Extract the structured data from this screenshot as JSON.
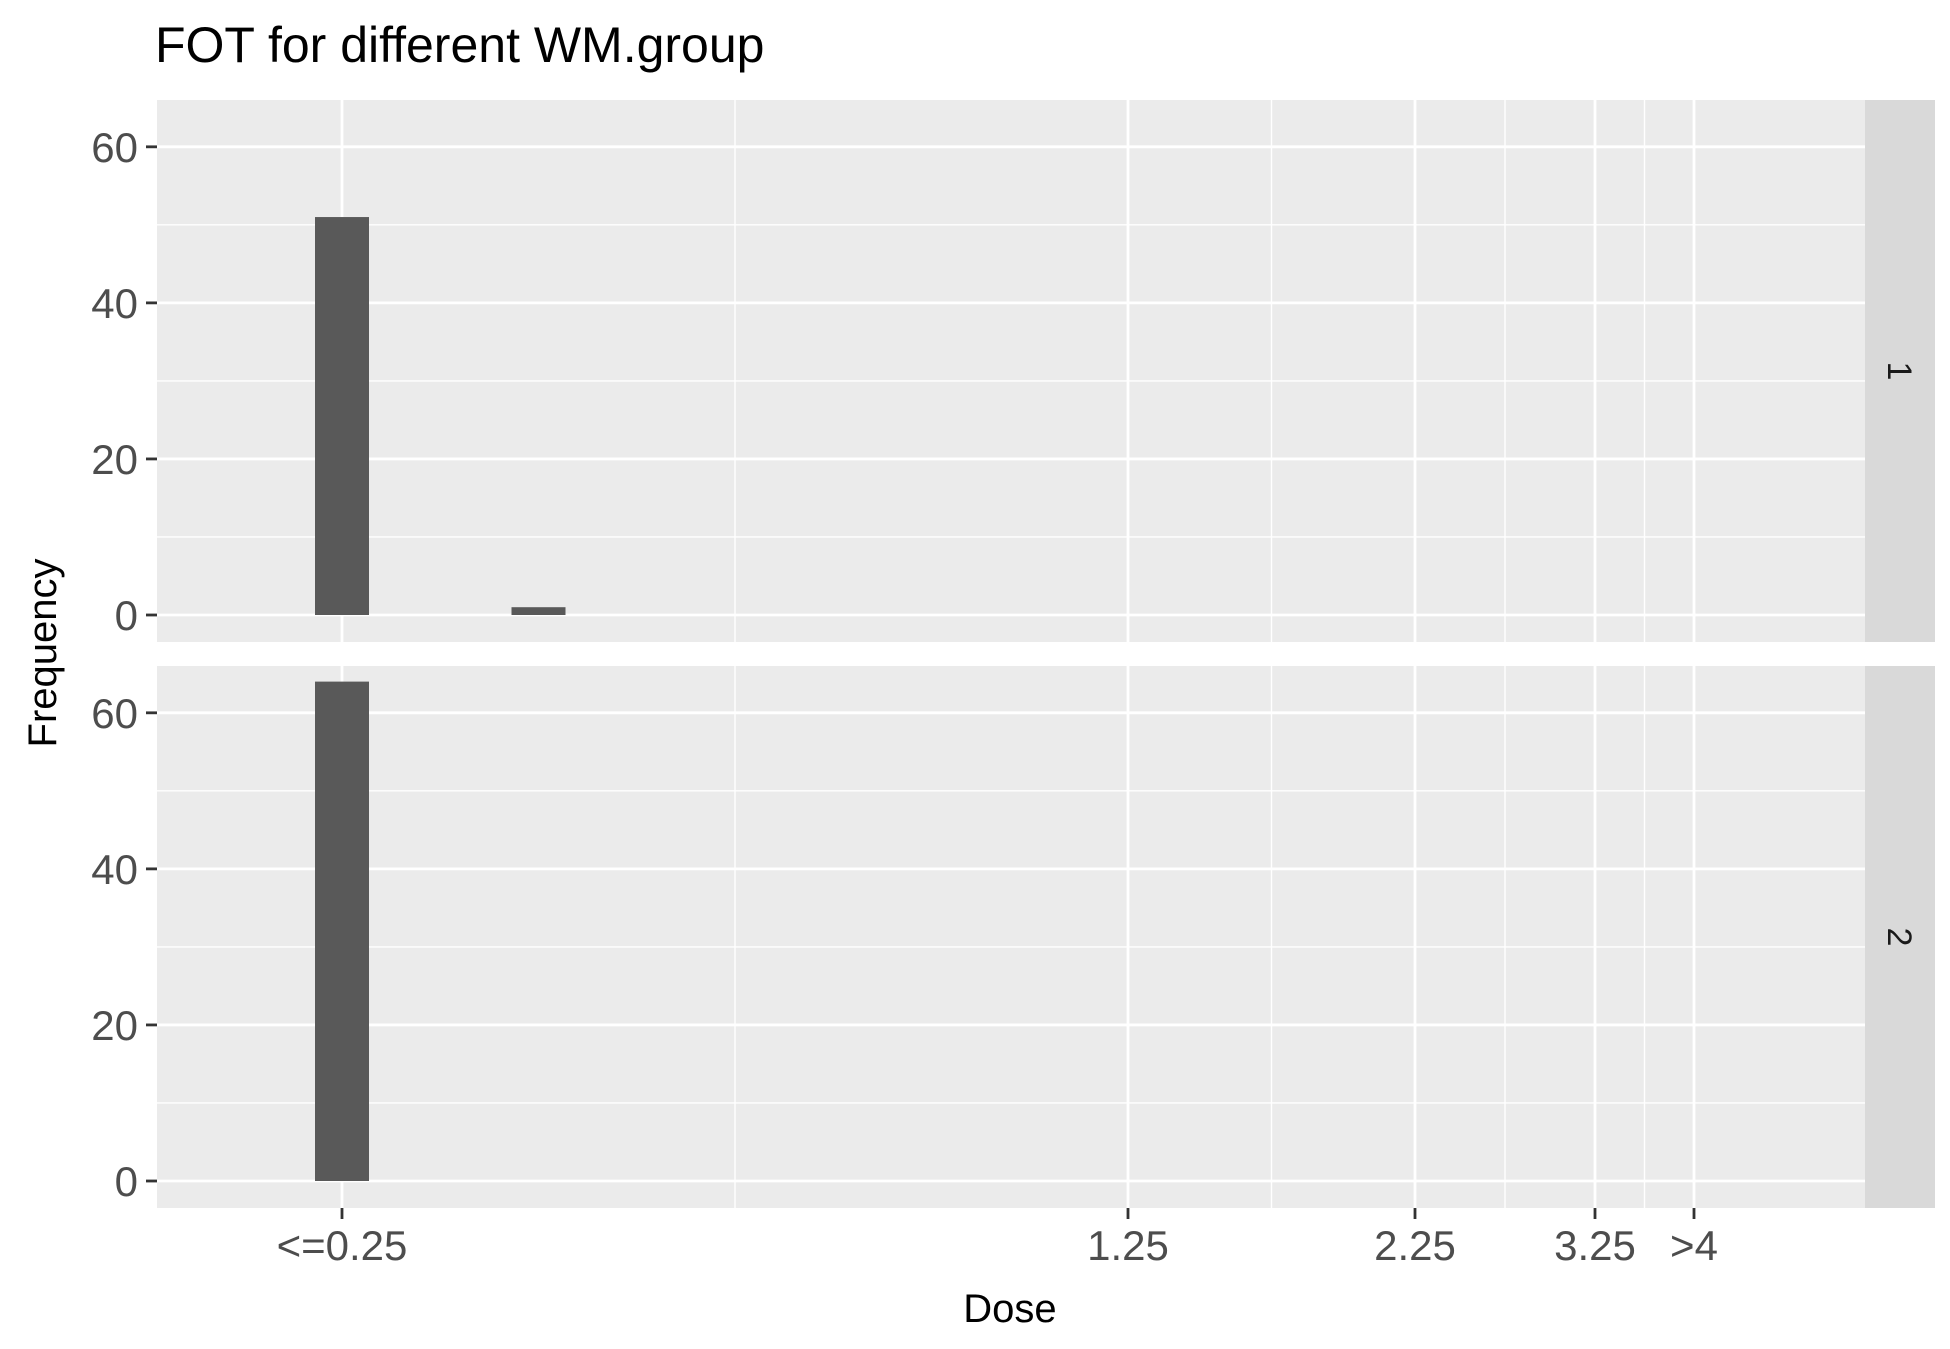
{
  "chart_data": {
    "type": "bar",
    "title": "FOT for different WM.group",
    "xlabel": "Dose",
    "ylabel": "Frequency",
    "x_ticks": [
      {
        "value": 0.25,
        "label": "<=0.25"
      },
      {
        "value": 1.25,
        "label": "1.25"
      },
      {
        "value": 2.25,
        "label": "2.25"
      },
      {
        "value": 3.25,
        "label": "3.25"
      },
      {
        "value": 4.0,
        "label": ">4"
      }
    ],
    "y_ticks": [
      0,
      20,
      40,
      60
    ],
    "ylim": [
      0,
      66
    ],
    "grid": true,
    "panels": [
      {
        "facet": "1",
        "bars": [
          {
            "x": 0.25,
            "value": 51
          },
          {
            "x": 0.5,
            "value": 1
          }
        ]
      },
      {
        "facet": "2",
        "bars": [
          {
            "x": 0.25,
            "value": 64
          }
        ]
      }
    ]
  }
}
